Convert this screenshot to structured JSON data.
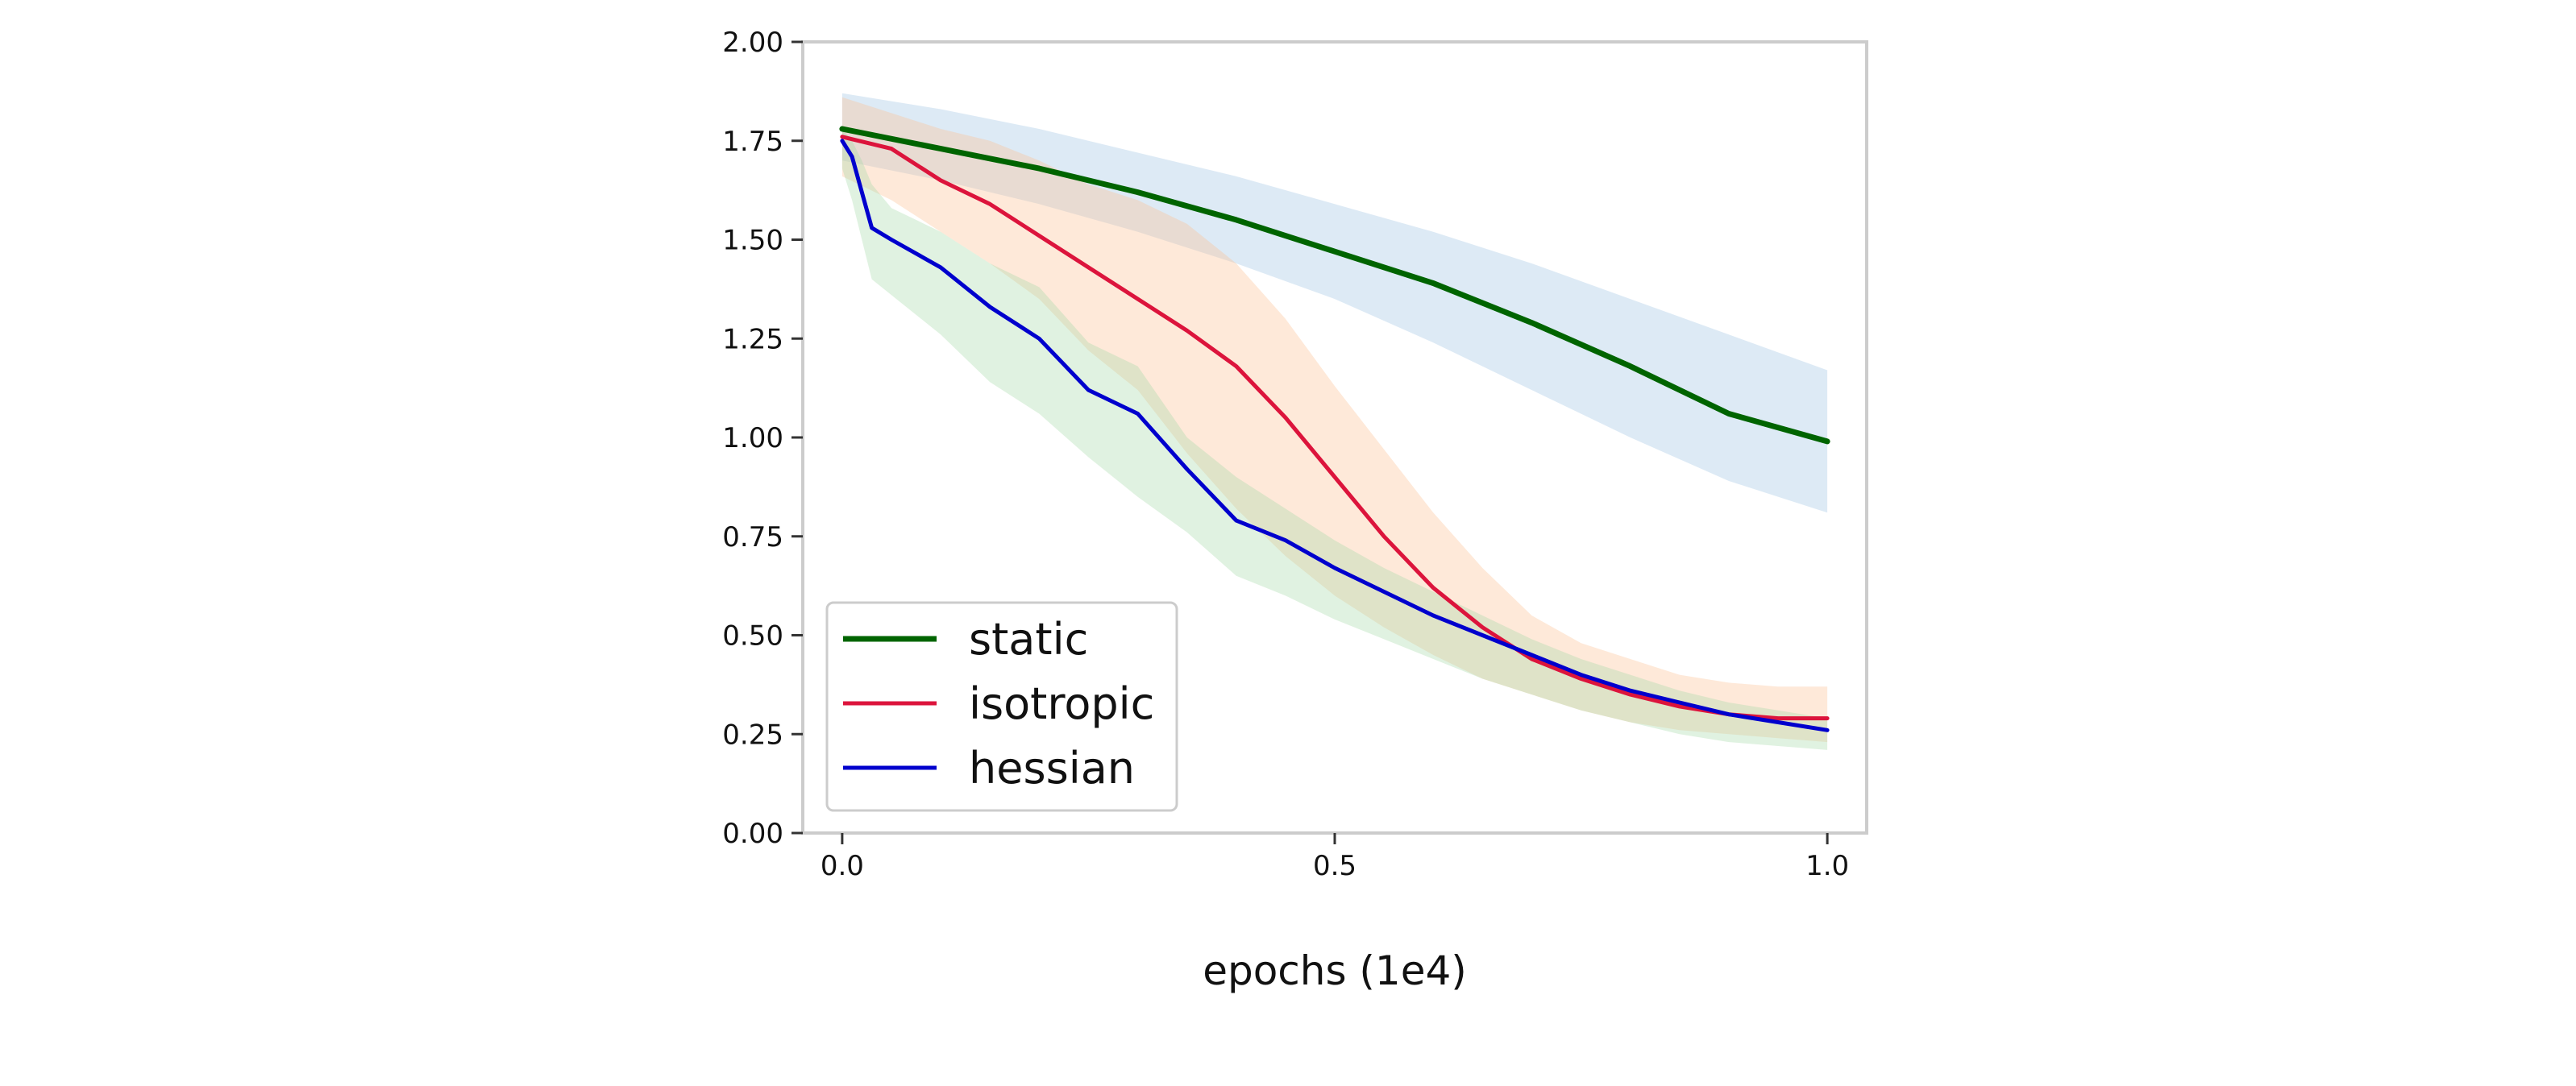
{
  "chart_data": {
    "type": "line",
    "title": "",
    "xlabel": "epochs (1e4)",
    "ylabel": "",
    "xlim": [
      -0.04,
      1.04
    ],
    "ylim": [
      0.0,
      2.0
    ],
    "xticks": [
      0.0,
      0.5,
      1.0
    ],
    "xtick_labels": [
      "0.0",
      "0.5",
      "1.0"
    ],
    "yticks": [
      0.0,
      0.25,
      0.5,
      0.75,
      1.0,
      1.25,
      1.5,
      1.75,
      2.0
    ],
    "ytick_labels": [
      "0.00",
      "0.25",
      "0.50",
      "0.75",
      "1.00",
      "1.25",
      "1.50",
      "1.75",
      "2.00"
    ],
    "grid": false,
    "legend_position": "lower-left",
    "series": [
      {
        "name": "static",
        "color": "#006400",
        "band_color": "#9fc2e1",
        "x": [
          0.0,
          0.1,
          0.2,
          0.3,
          0.4,
          0.5,
          0.6,
          0.7,
          0.8,
          0.9,
          1.0
        ],
        "y": [
          1.78,
          1.73,
          1.68,
          1.62,
          1.55,
          1.47,
          1.39,
          1.29,
          1.18,
          1.06,
          0.99
        ],
        "upper": [
          1.87,
          1.83,
          1.78,
          1.72,
          1.66,
          1.59,
          1.52,
          1.44,
          1.35,
          1.26,
          1.17
        ],
        "lower": [
          1.7,
          1.65,
          1.59,
          1.52,
          1.44,
          1.35,
          1.24,
          1.12,
          1.0,
          0.89,
          0.81
        ]
      },
      {
        "name": "isotropic",
        "color": "#dc143c",
        "band_color": "#fdbf93",
        "x": [
          0.0,
          0.05,
          0.1,
          0.15,
          0.2,
          0.25,
          0.3,
          0.35,
          0.4,
          0.45,
          0.5,
          0.55,
          0.6,
          0.65,
          0.7,
          0.75,
          0.8,
          0.85,
          0.9,
          0.95,
          1.0
        ],
        "y": [
          1.76,
          1.73,
          1.65,
          1.59,
          1.51,
          1.43,
          1.35,
          1.27,
          1.18,
          1.05,
          0.9,
          0.75,
          0.62,
          0.52,
          0.44,
          0.39,
          0.35,
          0.32,
          0.3,
          0.29,
          0.29
        ],
        "upper": [
          1.86,
          1.82,
          1.78,
          1.75,
          1.7,
          1.64,
          1.6,
          1.54,
          1.44,
          1.3,
          1.13,
          0.97,
          0.81,
          0.67,
          0.55,
          0.48,
          0.44,
          0.4,
          0.38,
          0.37,
          0.37
        ],
        "lower": [
          1.66,
          1.6,
          1.52,
          1.44,
          1.35,
          1.22,
          1.12,
          0.96,
          0.82,
          0.7,
          0.6,
          0.52,
          0.45,
          0.39,
          0.35,
          0.31,
          0.28,
          0.26,
          0.25,
          0.24,
          0.23
        ]
      },
      {
        "name": "hessian",
        "color": "#0000cd",
        "band_color": "#a7dba8",
        "x": [
          0.0,
          0.01,
          0.02,
          0.03,
          0.05,
          0.1,
          0.15,
          0.2,
          0.25,
          0.3,
          0.35,
          0.4,
          0.45,
          0.5,
          0.55,
          0.6,
          0.65,
          0.7,
          0.75,
          0.8,
          0.85,
          0.9,
          0.95,
          1.0
        ],
        "y": [
          1.75,
          1.71,
          1.62,
          1.53,
          1.5,
          1.43,
          1.33,
          1.25,
          1.12,
          1.06,
          0.92,
          0.79,
          0.74,
          0.67,
          0.61,
          0.55,
          0.5,
          0.45,
          0.4,
          0.36,
          0.33,
          0.3,
          0.28,
          0.26
        ],
        "upper": [
          1.78,
          1.75,
          1.7,
          1.64,
          1.58,
          1.52,
          1.44,
          1.38,
          1.24,
          1.18,
          1.0,
          0.9,
          0.82,
          0.74,
          0.67,
          0.61,
          0.55,
          0.49,
          0.44,
          0.4,
          0.36,
          0.33,
          0.31,
          0.29
        ],
        "lower": [
          1.68,
          1.6,
          1.5,
          1.4,
          1.36,
          1.26,
          1.14,
          1.06,
          0.95,
          0.85,
          0.76,
          0.65,
          0.6,
          0.54,
          0.49,
          0.44,
          0.39,
          0.35,
          0.31,
          0.28,
          0.25,
          0.23,
          0.22,
          0.21
        ]
      }
    ]
  }
}
